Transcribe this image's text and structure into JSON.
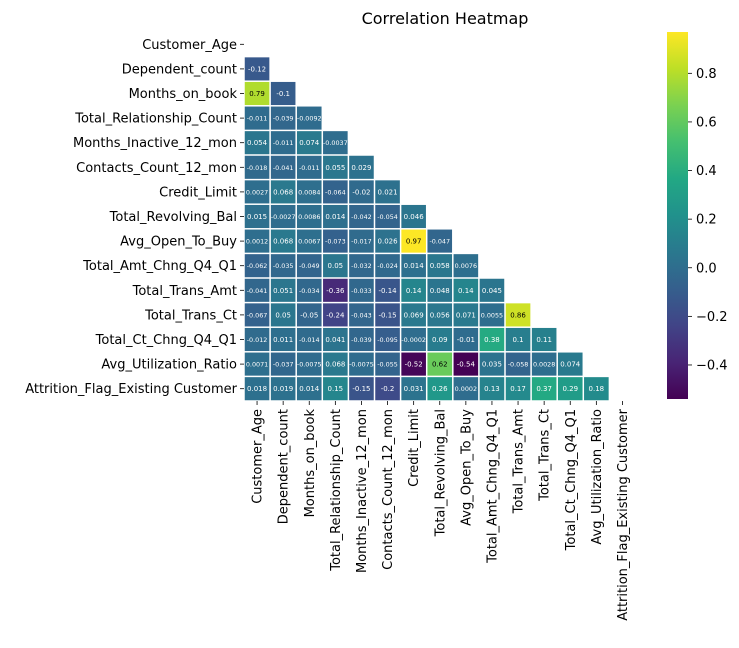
{
  "chart_data": {
    "type": "heatmap",
    "title": "Correlation Heatmap",
    "xlabel": "",
    "ylabel": "",
    "labels": [
      "Customer_Age",
      "Dependent_count",
      "Months_on_book",
      "Total_Relationship_Count",
      "Months_Inactive_12_mon",
      "Contacts_Count_12_mon",
      "Credit_Limit",
      "Total_Revolving_Bal",
      "Avg_Open_To_Buy",
      "Total_Amt_Chng_Q4_Q1",
      "Total_Trans_Amt",
      "Total_Trans_Ct",
      "Total_Ct_Chng_Q4_Q1",
      "Avg_Utilization_Ratio",
      "Attrition_Flag_Existing Customer"
    ],
    "mask": "upper-triangle-including-diagonal",
    "cells": [
      [],
      [
        "-0.12"
      ],
      [
        "0.79",
        "-0.1"
      ],
      [
        "-0.011",
        "-0.039",
        "-0.0092"
      ],
      [
        "0.054",
        "-0.011",
        "0.074",
        "-0.0037"
      ],
      [
        "-0.018",
        "-0.041",
        "-0.011",
        "0.055",
        "0.029"
      ],
      [
        "0.0027",
        "0.068",
        "0.0084",
        "-0.064",
        "-0.02",
        "0.021"
      ],
      [
        "0.015",
        "-0.0027",
        "0.0086",
        "0.014",
        "-0.042",
        "-0.054",
        "0.046"
      ],
      [
        "0.0012",
        "0.068",
        "0.0067",
        "-0.073",
        "-0.017",
        "0.026",
        "0.97",
        "-0.047"
      ],
      [
        "-0.062",
        "-0.035",
        "-0.049",
        "0.05",
        "-0.032",
        "-0.024",
        "0.014",
        "0.058",
        "0.0076"
      ],
      [
        "-0.041",
        "0.051",
        "-0.034",
        "-0.36",
        "-0.033",
        "-0.14",
        "0.14",
        "0.048",
        "0.14",
        "0.045"
      ],
      [
        "-0.067",
        "0.05",
        "-0.05",
        "-0.24",
        "-0.043",
        "-0.15",
        "0.069",
        "0.056",
        "0.071",
        "0.0055",
        "0.86"
      ],
      [
        "-0.012",
        "0.011",
        "-0.014",
        "0.041",
        "-0.039",
        "-0.095",
        "-0.0002",
        "0.09",
        "-0.01",
        "0.38",
        "0.1",
        "0.11"
      ],
      [
        "0.0071",
        "-0.037",
        "-0.0075",
        "0.068",
        "-0.0075",
        "-0.055",
        "-0.52",
        "0.62",
        "-0.54",
        "0.035",
        "-0.058",
        "0.0028",
        "0.074"
      ],
      [
        "0.018",
        "0.019",
        "0.014",
        "0.15",
        "-0.15",
        "-0.2",
        "0.031",
        "0.26",
        "0.0002",
        "0.13",
        "0.17",
        "0.37",
        "0.29",
        "0.18"
      ]
    ],
    "colorbar": {
      "colormap": "viridis",
      "vmin": -0.54,
      "vmax": 0.97,
      "ticks": [
        "0.8",
        "0.6",
        "0.4",
        "0.2",
        "0.0",
        "−0.2",
        "−0.4"
      ],
      "tick_values": [
        0.8,
        0.6,
        0.4,
        0.2,
        0.0,
        -0.2,
        -0.4
      ]
    },
    "grid": false,
    "legend": "colorbar-right"
  }
}
